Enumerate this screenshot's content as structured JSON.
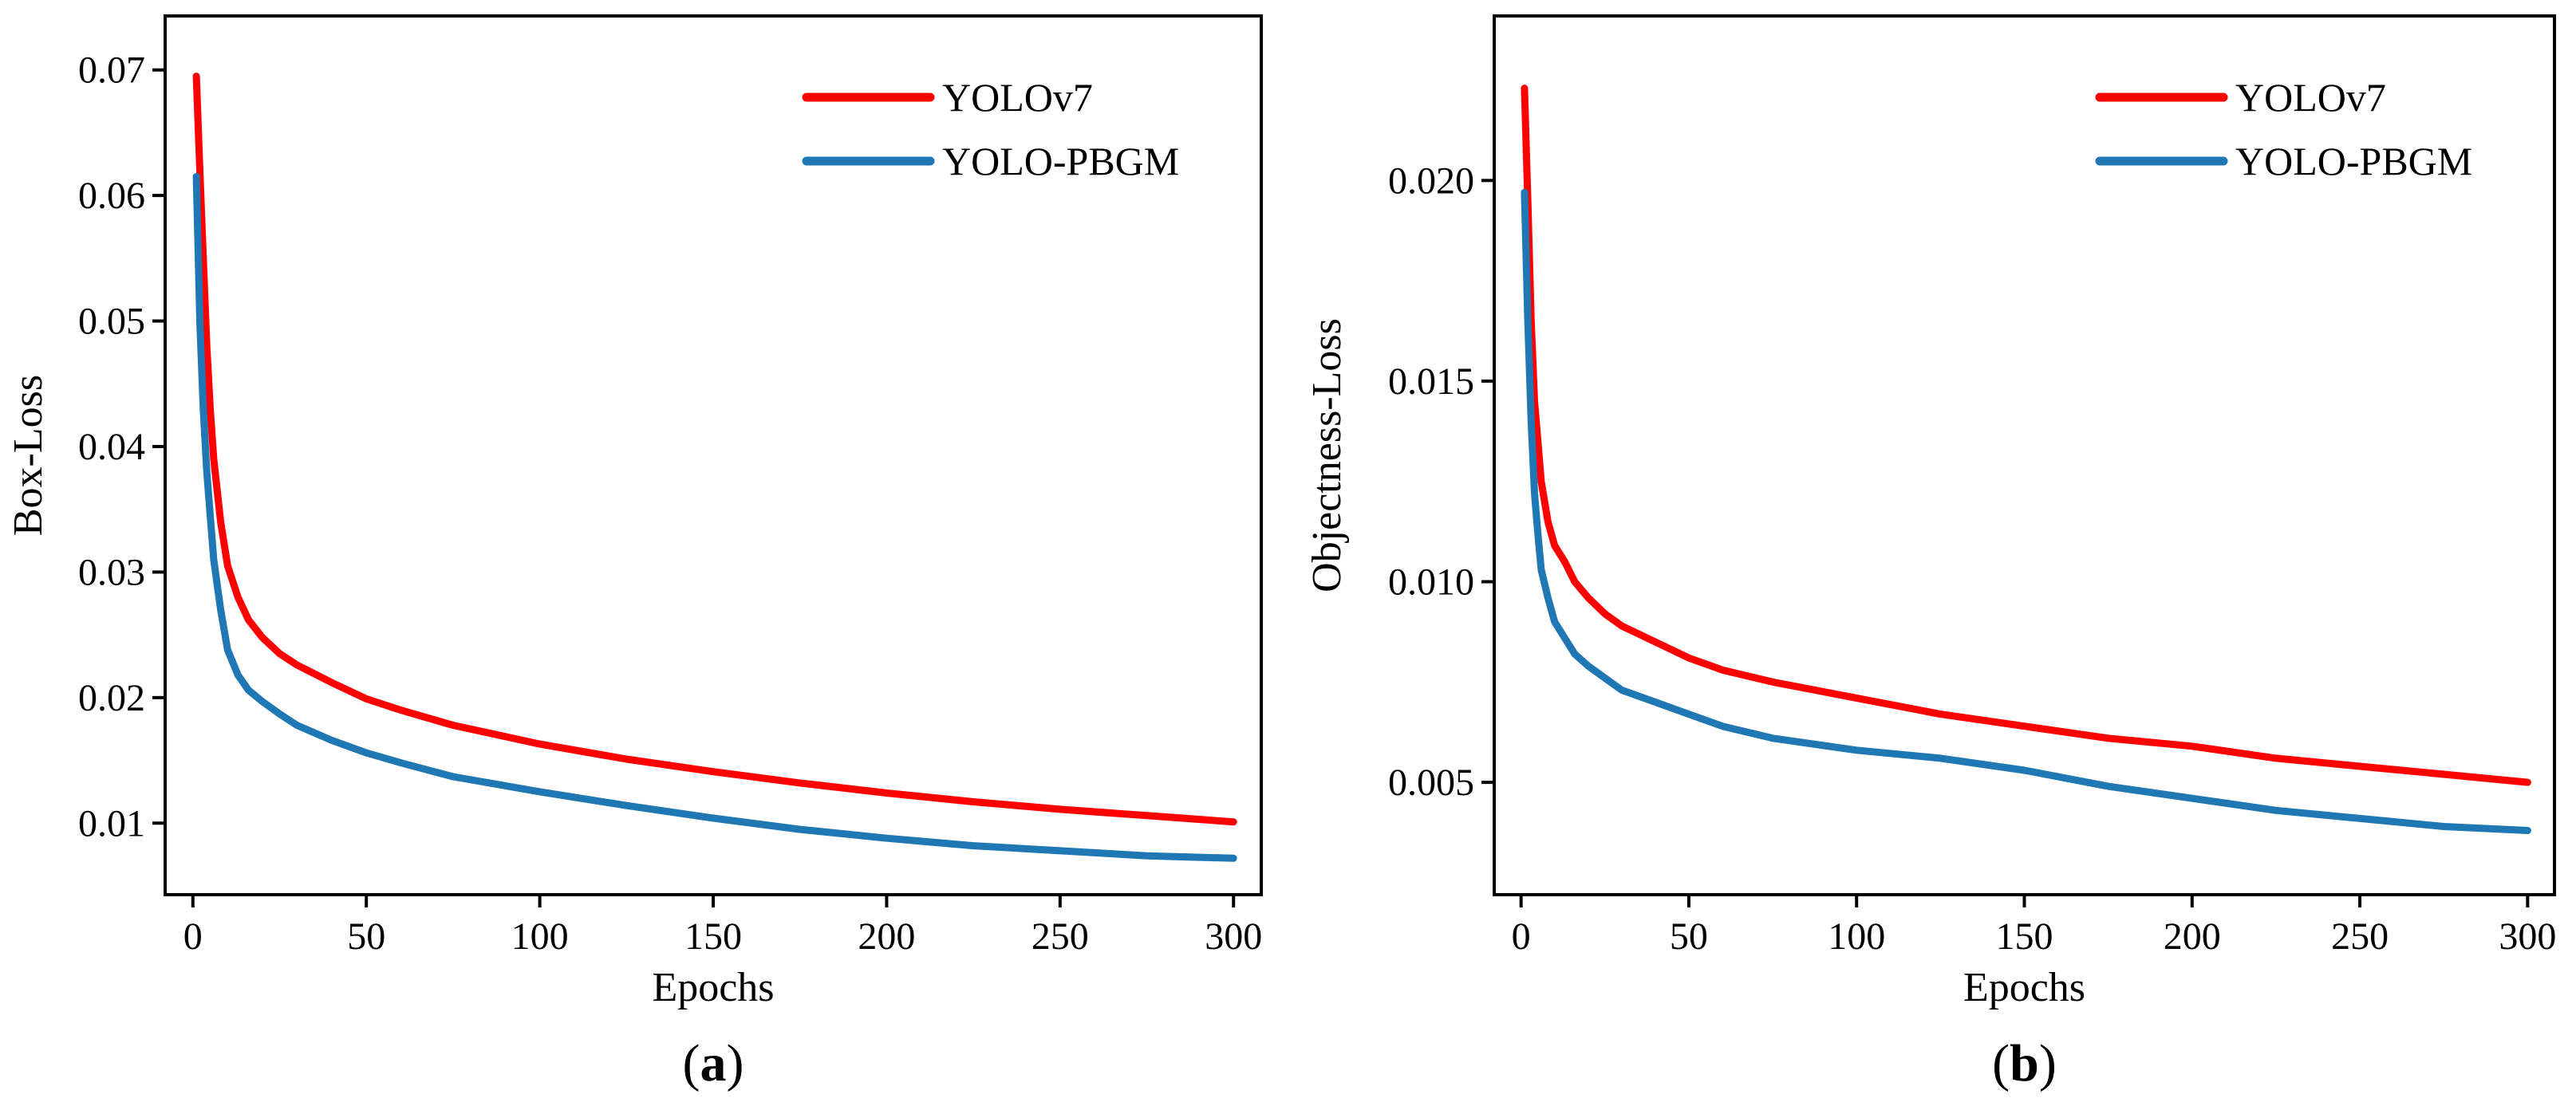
{
  "colors": {
    "yolov7": "#ff0000",
    "yolo_pbgm": "#1f77b4"
  },
  "chart_data": [
    {
      "type": "line",
      "panel_label": "a",
      "title": "",
      "xlabel": "Epochs",
      "ylabel": "Box-Loss",
      "xlim": [
        -8,
        308
      ],
      "ylim": [
        0.0043,
        0.0743
      ],
      "xticks": [
        0,
        50,
        100,
        150,
        200,
        250,
        300
      ],
      "yticks": [
        0.01,
        0.02,
        0.03,
        0.04,
        0.05,
        0.06,
        0.07
      ],
      "xtick_labels": [
        "0",
        "50",
        "100",
        "150",
        "200",
        "250",
        "300"
      ],
      "ytick_labels": [
        "0.01",
        "0.02",
        "0.03",
        "0.04",
        "0.05",
        "0.06",
        "0.07"
      ],
      "legend_position": "top-right",
      "grid": false,
      "series": [
        {
          "name": "YOLOv7",
          "color": "#ff0000",
          "x": [
            1,
            2,
            3,
            4,
            5,
            6,
            8,
            10,
            13,
            16,
            20,
            25,
            30,
            40,
            50,
            60,
            75,
            100,
            125,
            150,
            175,
            200,
            225,
            250,
            275,
            300
          ],
          "y": [
            0.0695,
            0.062,
            0.055,
            0.048,
            0.043,
            0.039,
            0.034,
            0.0305,
            0.028,
            0.0262,
            0.0248,
            0.0235,
            0.0226,
            0.0212,
            0.0199,
            0.019,
            0.0178,
            0.0163,
            0.0151,
            0.0141,
            0.0132,
            0.0124,
            0.0117,
            0.0111,
            0.0106,
            0.0101
          ]
        },
        {
          "name": "YOLO-PBGM",
          "color": "#1f77b4",
          "x": [
            1,
            2,
            3,
            4,
            5,
            6,
            8,
            10,
            13,
            16,
            20,
            25,
            30,
            40,
            50,
            60,
            75,
            100,
            125,
            150,
            175,
            200,
            225,
            250,
            275,
            300
          ],
          "y": [
            0.0615,
            0.05,
            0.043,
            0.038,
            0.0345,
            0.031,
            0.027,
            0.0238,
            0.0218,
            0.0206,
            0.0197,
            0.0187,
            0.0178,
            0.0166,
            0.0156,
            0.0148,
            0.0137,
            0.0125,
            0.0114,
            0.0104,
            0.0095,
            0.0088,
            0.0082,
            0.0078,
            0.0074,
            0.0072
          ]
        }
      ]
    },
    {
      "type": "line",
      "panel_label": "b",
      "title": "",
      "xlabel": "Epochs",
      "ylabel": "Objectness-Loss",
      "xlim": [
        -8,
        308
      ],
      "ylim": [
        0.0022,
        0.0241
      ],
      "xticks": [
        0,
        50,
        100,
        150,
        200,
        250,
        300
      ],
      "yticks": [
        0.005,
        0.01,
        0.015,
        0.02
      ],
      "xtick_labels": [
        "0",
        "50",
        "100",
        "150",
        "200",
        "250",
        "300"
      ],
      "ytick_labels": [
        "0.005",
        "0.010",
        "0.015",
        "0.020"
      ],
      "legend_position": "top-right",
      "grid": false,
      "series": [
        {
          "name": "YOLOv7",
          "color": "#ff0000",
          "x": [
            1,
            2,
            3,
            4,
            5,
            6,
            8,
            10,
            13,
            16,
            20,
            25,
            30,
            40,
            50,
            60,
            75,
            100,
            125,
            150,
            175,
            200,
            225,
            250,
            275,
            300
          ],
          "y": [
            0.0223,
            0.0195,
            0.0165,
            0.0145,
            0.0135,
            0.0125,
            0.0115,
            0.0109,
            0.0105,
            0.01,
            0.0096,
            0.0092,
            0.0089,
            0.0085,
            0.0081,
            0.0078,
            0.0075,
            0.0071,
            0.0067,
            0.0064,
            0.0061,
            0.0059,
            0.0056,
            0.0054,
            0.0052,
            0.005
          ]
        },
        {
          "name": "YOLO-PBGM",
          "color": "#1f77b4",
          "x": [
            1,
            2,
            3,
            4,
            5,
            6,
            8,
            10,
            13,
            16,
            20,
            25,
            30,
            40,
            50,
            60,
            75,
            100,
            125,
            150,
            175,
            200,
            225,
            250,
            275,
            300
          ],
          "y": [
            0.0197,
            0.0165,
            0.014,
            0.0122,
            0.0112,
            0.0103,
            0.0096,
            0.009,
            0.0086,
            0.0082,
            0.0079,
            0.0076,
            0.0073,
            0.007,
            0.0067,
            0.0064,
            0.0061,
            0.0058,
            0.0056,
            0.0053,
            0.0049,
            0.0046,
            0.0043,
            0.0041,
            0.0039,
            0.0038
          ]
        }
      ]
    }
  ]
}
